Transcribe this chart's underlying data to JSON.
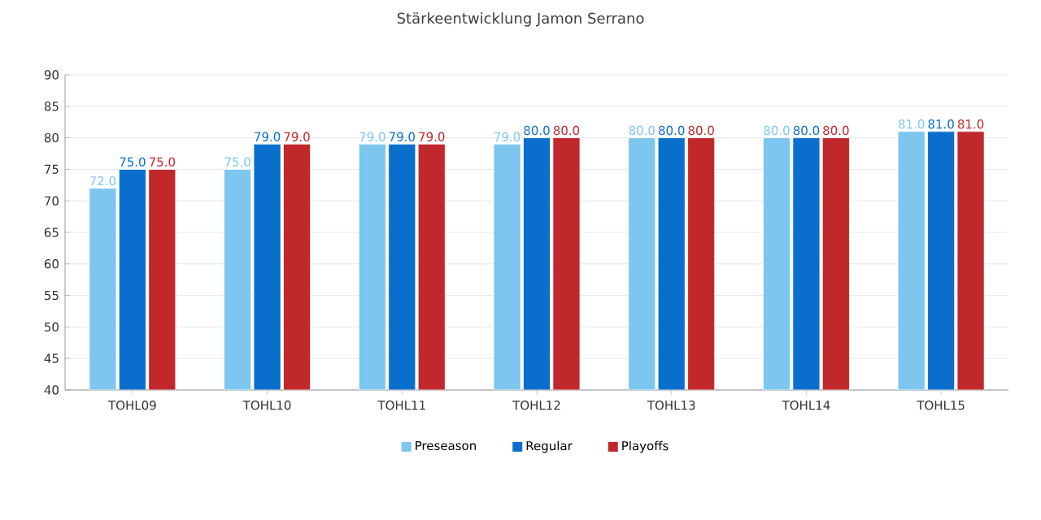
{
  "chart_data": {
    "type": "bar",
    "title": "Stärkeentwicklung Jamon Serrano",
    "categories": [
      "TOHL09",
      "TOHL10",
      "TOHL11",
      "TOHL12",
      "TOHL13",
      "TOHL14",
      "TOHL15"
    ],
    "series": [
      {
        "name": "Preseason",
        "color": "#7cc6f0",
        "values": [
          72,
          75,
          79,
          79,
          80,
          80,
          81
        ],
        "value_labels": [
          "72.0",
          "75.0",
          "79.0",
          "79.0",
          "80.0",
          "80.0",
          "81.0"
        ]
      },
      {
        "name": "Regular",
        "color": "#0a6fcc",
        "values": [
          75,
          79,
          79,
          80,
          80,
          80,
          81
        ],
        "value_labels": [
          "75.0",
          "79.0",
          "79.0",
          "80.0",
          "80.0",
          "80.0",
          "81.0"
        ]
      },
      {
        "name": "Playoffs",
        "color": "#c0282c",
        "values": [
          75,
          79,
          79,
          80,
          80,
          80,
          81
        ],
        "value_labels": [
          "75.0",
          "79.0",
          "79.0",
          "80.0",
          "80.0",
          "80.0",
          "81.0"
        ]
      }
    ],
    "ylim": [
      40,
      90
    ],
    "yticks": [
      40,
      45,
      50,
      55,
      60,
      65,
      70,
      75,
      80,
      85,
      90
    ],
    "grid": "y",
    "legend": "bottom"
  }
}
